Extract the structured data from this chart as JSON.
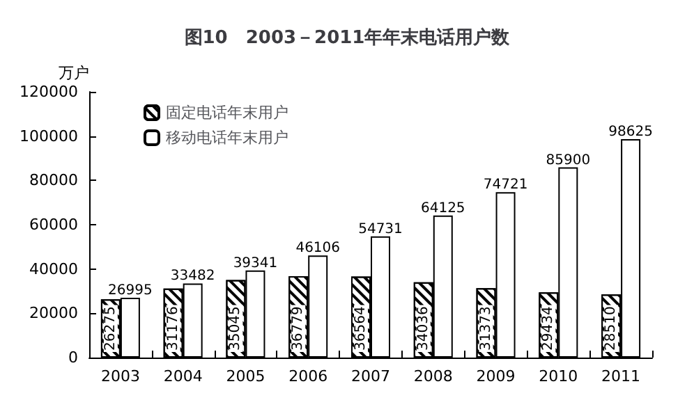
{
  "chart_data": {
    "type": "bar",
    "title": "图10　2003－2011年年末电话用户数",
    "ylabel": "万户",
    "categories": [
      "2003",
      "2004",
      "2005",
      "2006",
      "2007",
      "2008",
      "2009",
      "2010",
      "2011"
    ],
    "series": [
      {
        "name": "固定电话年末用户",
        "color": "#ffffff",
        "values": [
          26275,
          31176,
          35045,
          36779,
          36564,
          34036,
          31373,
          29434,
          28510
        ]
      },
      {
        "name": "移动电话年末用户",
        "color": "#ffffff",
        "values": [
          26995,
          33482,
          39341,
          46106,
          54731,
          64125,
          74721,
          85900,
          98625
        ]
      }
    ],
    "ylim": [
      0,
      120000
    ],
    "yticks": [
      0,
      20000,
      40000,
      60000,
      80000,
      100000,
      120000
    ],
    "grid": false,
    "legend": "top left",
    "data_labels": true
  }
}
